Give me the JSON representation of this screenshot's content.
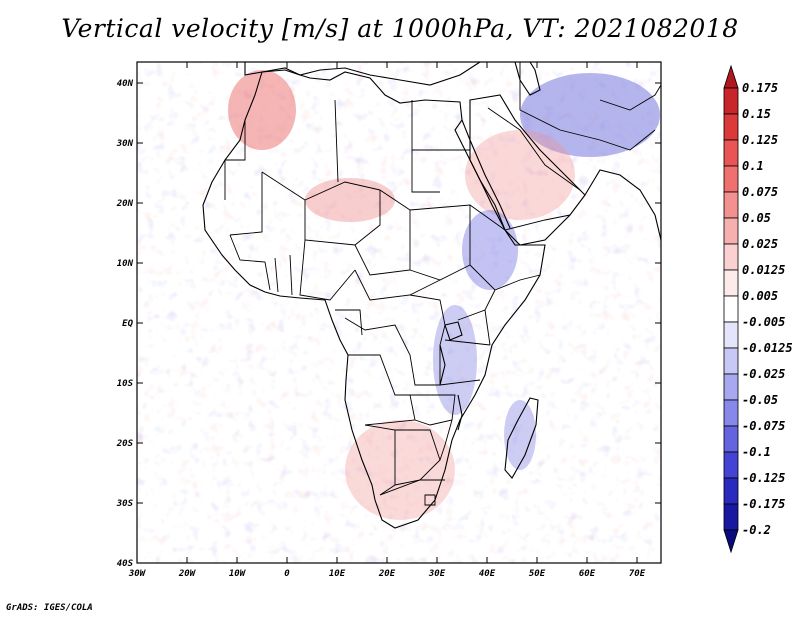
{
  "title": "Vertical velocity [m/s] at 1000hPa, VT: 2021082018",
  "footer": "GrADS: IGES/COLA",
  "map": {
    "lat_labels": [
      "40N",
      "30N",
      "20N",
      "10N",
      "EQ",
      "10S",
      "20S",
      "30S",
      "40S"
    ],
    "lon_labels": [
      "30W",
      "20W",
      "10W",
      "0",
      "10E",
      "20E",
      "30E",
      "40E",
      "50E",
      "60E",
      "70E"
    ],
    "lat_range": [
      -40,
      45
    ],
    "lon_range": [
      -30,
      75
    ]
  },
  "colorbar": {
    "labels": [
      "0.175",
      "0.15",
      "0.125",
      "0.1",
      "0.075",
      "0.05",
      "0.025",
      "0.0125",
      "0.005",
      "-0.005",
      "-0.0125",
      "-0.025",
      "-0.05",
      "-0.075",
      "-0.1",
      "-0.125",
      "-0.175",
      "-0.2"
    ],
    "colors": [
      "#b0171f",
      "#c8262b",
      "#dc3a3a",
      "#ea5454",
      "#f07070",
      "#f39090",
      "#f7b0b0",
      "#fad0d0",
      "#fdeaea",
      "#ffffff",
      "#e4e4fb",
      "#c8c8f6",
      "#a8a8f0",
      "#8888ea",
      "#6464e0",
      "#4444d4",
      "#2a2abf",
      "#1818a0",
      "#0a0a80"
    ]
  }
}
